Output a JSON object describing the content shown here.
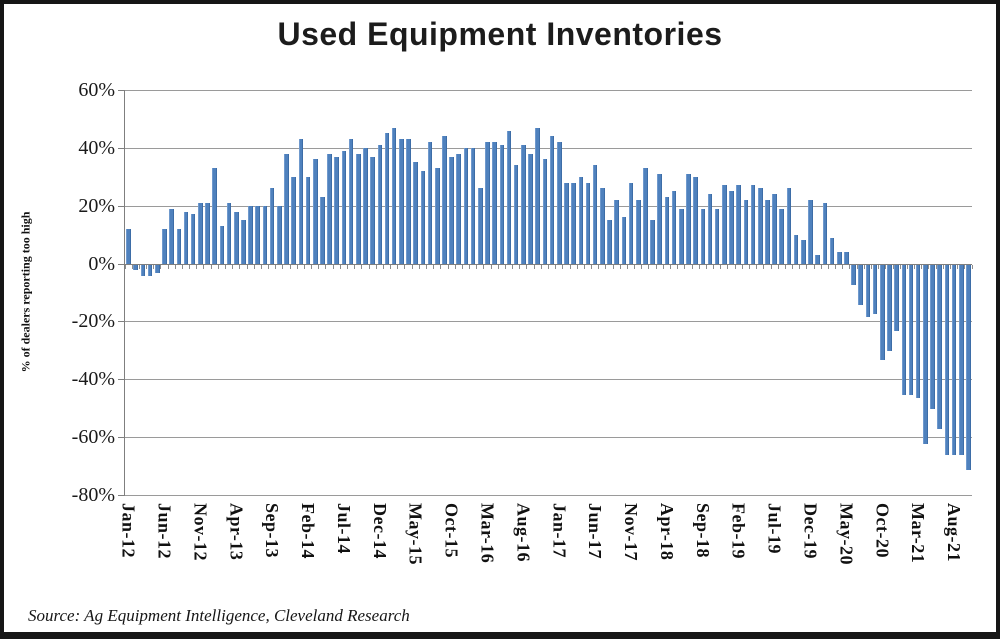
{
  "title": "Used Equipment Inventories",
  "source": "Source: Ag Equipment Intelligence, Cleveland Research",
  "colors": {
    "bar": "#4F81BD",
    "grid": "#9a9a9a",
    "axis": "#7f7f7f",
    "frame": "#161616"
  },
  "chart_data": {
    "type": "bar",
    "title": "Used Equipment Inventories",
    "xlabel": "",
    "ylabel": "% of dealers reporting too high",
    "ylim": [
      -80,
      60
    ],
    "ytick_step": 20,
    "ytick_labels": [
      "60%",
      "40%",
      "20%",
      "0%",
      "-20%",
      "-40%",
      "-60%",
      "-80%"
    ],
    "grid": true,
    "legend": "none",
    "x_label_every": 5,
    "visible_x_labels": [
      "Jan-12",
      "Jun-12",
      "Nov-12",
      "Apr-13",
      "Sep-13",
      "Feb-14",
      "Jul-14",
      "Dec-14",
      "May-15",
      "Oct-15",
      "Mar-16",
      "Aug-16",
      "Jan-17",
      "Jun-17",
      "Nov-17",
      "Apr-18",
      "Sep-18",
      "Feb-19",
      "Jul-19",
      "Dec-19",
      "May-20",
      "Oct-20",
      "Mar-21",
      "Aug-21"
    ],
    "categories": [
      "Jan-12",
      "Feb-12",
      "Mar-12",
      "Apr-12",
      "May-12",
      "Jun-12",
      "Jul-12",
      "Aug-12",
      "Sep-12",
      "Oct-12",
      "Nov-12",
      "Dec-12",
      "Jan-13",
      "Feb-13",
      "Mar-13",
      "Apr-13",
      "May-13",
      "Jun-13",
      "Jul-13",
      "Aug-13",
      "Sep-13",
      "Oct-13",
      "Nov-13",
      "Dec-13",
      "Jan-14",
      "Feb-14",
      "Mar-14",
      "Apr-14",
      "May-14",
      "Jun-14",
      "Jul-14",
      "Aug-14",
      "Sep-14",
      "Oct-14",
      "Nov-14",
      "Dec-14",
      "Jan-15",
      "Feb-15",
      "Mar-15",
      "Apr-15",
      "May-15",
      "Jun-15",
      "Jul-15",
      "Aug-15",
      "Sep-15",
      "Oct-15",
      "Nov-15",
      "Dec-15",
      "Jan-16",
      "Feb-16",
      "Mar-16",
      "Apr-16",
      "May-16",
      "Jun-16",
      "Jul-16",
      "Aug-16",
      "Sep-16",
      "Oct-16",
      "Nov-16",
      "Dec-16",
      "Jan-17",
      "Feb-17",
      "Mar-17",
      "Apr-17",
      "May-17",
      "Jun-17",
      "Jul-17",
      "Aug-17",
      "Sep-17",
      "Oct-17",
      "Nov-17",
      "Dec-17",
      "Jan-18",
      "Feb-18",
      "Mar-18",
      "Apr-18",
      "May-18",
      "Jun-18",
      "Jul-18",
      "Aug-18",
      "Sep-18",
      "Oct-18",
      "Nov-18",
      "Dec-18",
      "Jan-19",
      "Feb-19",
      "Mar-19",
      "Apr-19",
      "May-19",
      "Jun-19",
      "Jul-19",
      "Aug-19",
      "Sep-19",
      "Oct-19",
      "Nov-19",
      "Dec-19",
      "Jan-20",
      "Feb-20",
      "Mar-20",
      "Apr-20",
      "May-20",
      "Jun-20",
      "Jul-20",
      "Aug-20",
      "Sep-20",
      "Oct-20",
      "Nov-20",
      "Dec-20",
      "Jan-21",
      "Feb-21",
      "Mar-21",
      "Apr-21",
      "May-21",
      "Jun-21",
      "Jul-21",
      "Aug-21",
      "Sep-21",
      "Oct-21"
    ],
    "values": [
      12,
      -2,
      -4,
      -4,
      -3,
      12,
      19,
      12,
      18,
      17,
      21,
      21,
      33,
      13,
      21,
      18,
      15,
      20,
      20,
      20,
      26,
      20,
      38,
      30,
      43,
      30,
      36,
      23,
      38,
      37,
      39,
      43,
      38,
      40,
      37,
      41,
      45,
      47,
      43,
      43,
      35,
      32,
      42,
      33,
      44,
      37,
      38,
      40,
      40,
      26,
      42,
      42,
      41,
      46,
      34,
      41,
      38,
      47,
      36,
      44,
      42,
      28,
      28,
      30,
      28,
      34,
      26,
      15,
      22,
      16,
      28,
      22,
      33,
      15,
      31,
      23,
      25,
      19,
      31,
      30,
      19,
      24,
      19,
      27,
      25,
      27,
      22,
      27,
      26,
      22,
      24,
      19,
      26,
      10,
      8,
      22,
      3,
      21,
      9,
      4,
      4,
      -7,
      -14,
      -18,
      -17,
      -33,
      -30,
      -23,
      -45,
      -45,
      -46,
      -62,
      -50,
      -57,
      -66,
      -66,
      -66,
      -71
    ]
  }
}
